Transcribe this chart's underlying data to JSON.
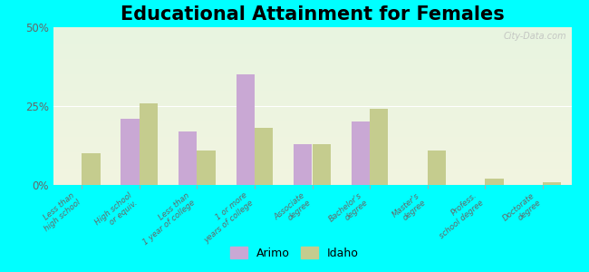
{
  "title": "Educational Attainment for Females",
  "categories": [
    "Less than\nhigh school",
    "High school\nor equiv.",
    "Less than\n1 year of college",
    "1 or more\nyears of college",
    "Associate\ndegree",
    "Bachelor's\ndegree",
    "Master's\ndegree",
    "Profess.\nschool degree",
    "Doctorate\ndegree"
  ],
  "arimo": [
    0.0,
    21.0,
    17.0,
    35.0,
    13.0,
    20.0,
    0.0,
    0.0,
    0.0
  ],
  "idaho": [
    10.0,
    26.0,
    11.0,
    18.0,
    13.0,
    24.0,
    11.0,
    2.0,
    1.0
  ],
  "arimo_color": "#c9a8d4",
  "idaho_color": "#c5cc8e",
  "background_color": "#00ffff",
  "yticks": [
    0,
    25,
    50
  ],
  "ylim": [
    0,
    50
  ],
  "title_fontsize": 15,
  "legend_arimo": "Arimo",
  "legend_idaho": "Idaho",
  "watermark": "City-Data.com",
  "bar_width": 0.32
}
